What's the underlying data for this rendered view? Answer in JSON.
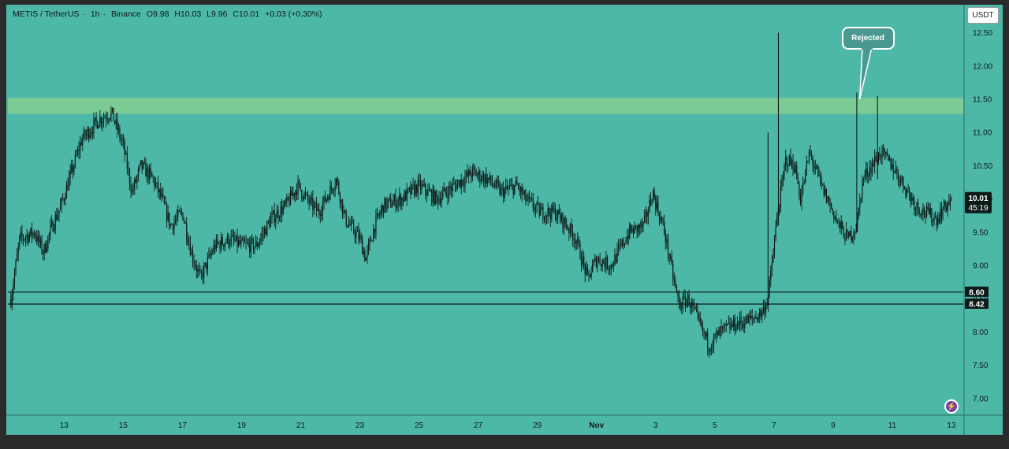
{
  "header": {
    "symbol": "METIS / TetherUS",
    "interval": "1h",
    "exchange": "Binance",
    "open": "O9.98",
    "high": "H10.03",
    "low": "L9.96",
    "close": "C10.01",
    "change": "+0.03 (+0.30%)"
  },
  "currency_button": "USDT",
  "annotation": "Rejected",
  "price_tag": {
    "price": "10.01",
    "countdown": "45:19"
  },
  "icons": {
    "alert": "lightning-icon"
  },
  "colors": {
    "background": "#4db8a8",
    "resistance_zone": "#7ccb95",
    "candles": "#0c1a18",
    "frame": "#2b2b2e"
  },
  "chart_data": {
    "type": "candlestick",
    "y_range": [
      6.75,
      12.85
    ],
    "y_ticks": [
      "12.50",
      "12.00",
      "11.50",
      "11.00",
      "10.50",
      "10.00",
      "9.50",
      "9.00",
      "8.50",
      "8.00",
      "7.50",
      "7.00"
    ],
    "x_ticks": [
      {
        "label": "13",
        "day": 13
      },
      {
        "label": "15",
        "day": 15
      },
      {
        "label": "17",
        "day": 17
      },
      {
        "label": "19",
        "day": 19
      },
      {
        "label": "21",
        "day": 21
      },
      {
        "label": "23",
        "day": 23
      },
      {
        "label": "25",
        "day": 25
      },
      {
        "label": "27",
        "day": 27
      },
      {
        "label": "29",
        "day": 29
      },
      {
        "label": "Nov",
        "day": 31
      },
      {
        "label": "3",
        "day": 33
      },
      {
        "label": "5",
        "day": 35
      },
      {
        "label": "7",
        "day": 37
      },
      {
        "label": "9",
        "day": 39
      },
      {
        "label": "11",
        "day": 41
      },
      {
        "label": "13",
        "day": 43
      }
    ],
    "resistance_zone": [
      11.28,
      11.52
    ],
    "support_lines": [
      {
        "price": 8.6,
        "label": "8.60"
      },
      {
        "price": 8.42,
        "label": "8.42"
      }
    ],
    "rejected_at": {
      "day": 39.9,
      "price": 11.5
    },
    "price_path": [
      [
        11.2,
        8.5
      ],
      [
        11.5,
        9.4
      ],
      [
        12.0,
        9.5
      ],
      [
        12.3,
        9.2
      ],
      [
        12.6,
        9.6
      ],
      [
        12.9,
        9.9
      ],
      [
        13.6,
        10.9
      ],
      [
        14.2,
        11.2
      ],
      [
        14.6,
        11.3
      ],
      [
        15.0,
        10.8
      ],
      [
        15.3,
        10.1
      ],
      [
        15.6,
        10.5
      ],
      [
        16.0,
        10.3
      ],
      [
        16.3,
        10.0
      ],
      [
        16.6,
        9.6
      ],
      [
        17.0,
        9.8
      ],
      [
        17.3,
        9.2
      ],
      [
        17.6,
        8.8
      ],
      [
        17.8,
        9.0
      ],
      [
        18.1,
        9.3
      ],
      [
        18.6,
        9.4
      ],
      [
        19.0,
        9.3
      ],
      [
        19.5,
        9.3
      ],
      [
        20.0,
        9.7
      ],
      [
        20.5,
        9.9
      ],
      [
        20.9,
        10.2
      ],
      [
        21.2,
        10.0
      ],
      [
        21.6,
        9.8
      ],
      [
        22.2,
        10.3
      ],
      [
        22.5,
        9.7
      ],
      [
        23.0,
        9.4
      ],
      [
        23.2,
        9.1
      ],
      [
        23.5,
        9.6
      ],
      [
        23.8,
        9.9
      ],
      [
        24.4,
        10.0
      ],
      [
        25.0,
        10.2
      ],
      [
        25.6,
        10.0
      ],
      [
        26.2,
        10.2
      ],
      [
        26.8,
        10.4
      ],
      [
        27.3,
        10.3
      ],
      [
        27.8,
        10.1
      ],
      [
        28.3,
        10.2
      ],
      [
        28.6,
        10.0
      ],
      [
        29.1,
        9.8
      ],
      [
        29.6,
        9.8
      ],
      [
        30.0,
        9.6
      ],
      [
        30.3,
        9.4
      ],
      [
        30.7,
        8.8
      ],
      [
        31.0,
        9.1
      ],
      [
        31.5,
        9.0
      ],
      [
        32.1,
        9.5
      ],
      [
        32.6,
        9.6
      ],
      [
        32.9,
        10.1
      ],
      [
        33.3,
        9.5
      ],
      [
        33.6,
        8.8
      ],
      [
        33.8,
        8.4
      ],
      [
        34.1,
        8.5
      ],
      [
        34.5,
        8.1
      ],
      [
        34.8,
        7.8
      ],
      [
        35.2,
        8.0
      ],
      [
        35.6,
        8.1
      ],
      [
        36.3,
        8.2
      ],
      [
        36.6,
        8.3
      ],
      [
        36.8,
        8.5
      ],
      [
        37.1,
        9.7
      ],
      [
        37.4,
        10.6
      ],
      [
        37.7,
        10.5
      ],
      [
        37.9,
        10.0
      ],
      [
        38.2,
        10.7
      ],
      [
        38.6,
        10.2
      ],
      [
        38.9,
        9.9
      ],
      [
        39.2,
        9.6
      ],
      [
        39.5,
        9.4
      ],
      [
        39.8,
        9.6
      ],
      [
        40.0,
        10.3
      ],
      [
        40.3,
        10.5
      ],
      [
        40.6,
        10.7
      ],
      [
        41.0,
        10.5
      ],
      [
        41.4,
        10.2
      ],
      [
        41.8,
        9.9
      ],
      [
        42.1,
        9.8
      ],
      [
        42.5,
        9.7
      ],
      [
        42.8,
        9.9
      ],
      [
        43.0,
        10.0
      ]
    ],
    "spikes": [
      {
        "day": 37.15,
        "low": 9.6,
        "high": 12.5
      },
      {
        "day": 36.8,
        "low": 8.4,
        "high": 11.0
      },
      {
        "day": 39.8,
        "low": 9.5,
        "high": 11.6
      },
      {
        "day": 40.5,
        "low": 10.3,
        "high": 11.55
      }
    ],
    "last_price": 10.01
  }
}
